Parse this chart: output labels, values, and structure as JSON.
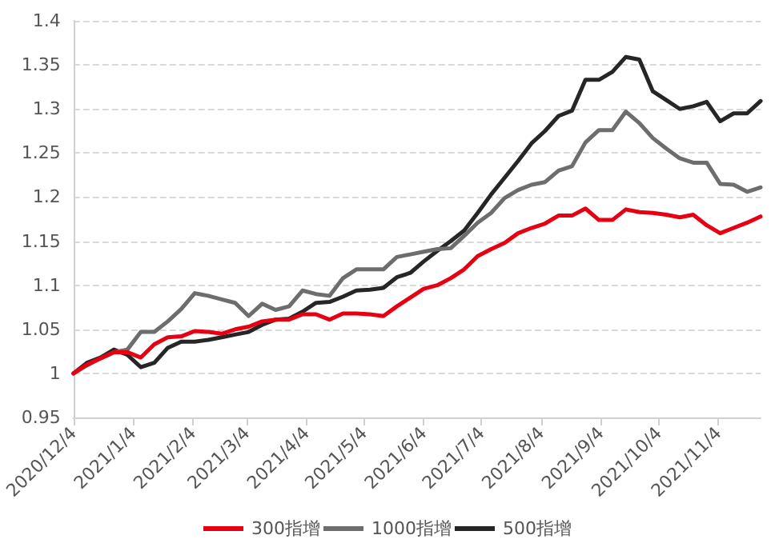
{
  "chart_data": {
    "type": "line",
    "x": [
      "2020-12-04",
      "2020-12-11",
      "2020-12-18",
      "2020-12-25",
      "2021-01-01",
      "2021-01-08",
      "2021-01-15",
      "2021-01-22",
      "2021-01-29",
      "2021-02-05",
      "2021-02-12",
      "2021-02-19",
      "2021-02-26",
      "2021-03-05",
      "2021-03-12",
      "2021-03-19",
      "2021-03-26",
      "2021-04-02",
      "2021-04-09",
      "2021-04-16",
      "2021-04-23",
      "2021-04-30",
      "2021-05-07",
      "2021-05-14",
      "2021-05-21",
      "2021-05-28",
      "2021-06-04",
      "2021-06-11",
      "2021-06-18",
      "2021-06-25",
      "2021-07-02",
      "2021-07-09",
      "2021-07-16",
      "2021-07-23",
      "2021-07-30",
      "2021-08-06",
      "2021-08-13",
      "2021-08-20",
      "2021-08-27",
      "2021-09-03",
      "2021-09-10",
      "2021-09-17",
      "2021-09-24",
      "2021-10-01",
      "2021-10-08",
      "2021-10-15",
      "2021-10-22",
      "2021-10-29",
      "2021-11-05",
      "2021-11-12",
      "2021-11-19",
      "2021-11-26"
    ],
    "series": [
      {
        "name": "300指增",
        "color": "#e60012",
        "values": [
          1.0,
          1.01,
          1.017,
          1.024,
          1.024,
          1.018,
          1.033,
          1.041,
          1.042,
          1.048,
          1.047,
          1.045,
          1.05,
          1.053,
          1.059,
          1.061,
          1.061,
          1.067,
          1.067,
          1.061,
          1.068,
          1.068,
          1.067,
          1.065,
          1.076,
          1.086,
          1.096,
          1.1,
          1.108,
          1.118,
          1.133,
          1.141,
          1.148,
          1.159,
          1.165,
          1.17,
          1.179,
          1.179,
          1.187,
          1.174,
          1.174,
          1.186,
          1.183,
          1.182,
          1.18,
          1.177,
          1.18,
          1.168,
          1.159,
          1.165,
          1.171,
          1.178
        ]
      },
      {
        "name": "1000指增",
        "color": "#6d6d6d",
        "values": [
          1.0,
          1.009,
          1.017,
          1.024,
          1.027,
          1.047,
          1.047,
          1.059,
          1.073,
          1.091,
          1.088,
          1.084,
          1.08,
          1.065,
          1.079,
          1.072,
          1.076,
          1.094,
          1.09,
          1.088,
          1.108,
          1.118,
          1.118,
          1.118,
          1.132,
          1.135,
          1.138,
          1.141,
          1.142,
          1.156,
          1.171,
          1.182,
          1.199,
          1.208,
          1.214,
          1.217,
          1.23,
          1.235,
          1.262,
          1.276,
          1.276,
          1.297,
          1.284,
          1.267,
          1.255,
          1.244,
          1.239,
          1.239,
          1.215,
          1.214,
          1.206,
          1.211
        ]
      },
      {
        "name": "500指增",
        "color": "#262626",
        "values": [
          1.0,
          1.012,
          1.018,
          1.027,
          1.021,
          1.007,
          1.012,
          1.029,
          1.036,
          1.036,
          1.038,
          1.041,
          1.044,
          1.047,
          1.055,
          1.061,
          1.062,
          1.07,
          1.08,
          1.081,
          1.087,
          1.094,
          1.095,
          1.097,
          1.109,
          1.114,
          1.127,
          1.139,
          1.15,
          1.162,
          1.182,
          1.203,
          1.222,
          1.241,
          1.261,
          1.275,
          1.292,
          1.298,
          1.333,
          1.333,
          1.342,
          1.359,
          1.356,
          1.32,
          1.31,
          1.3,
          1.303,
          1.308,
          1.286,
          1.295,
          1.295,
          1.309
        ]
      }
    ],
    "xlim": [
      "2020-12-04",
      "2021-11-26"
    ],
    "xticks": [
      {
        "value": "2020-12-04",
        "label": "2020/12/4"
      },
      {
        "value": "2021-01-04",
        "label": "2021/1/4"
      },
      {
        "value": "2021-02-04",
        "label": "2021/2/4"
      },
      {
        "value": "2021-03-04",
        "label": "2021/3/4"
      },
      {
        "value": "2021-04-04",
        "label": "2021/4/4"
      },
      {
        "value": "2021-05-04",
        "label": "2021/5/4"
      },
      {
        "value": "2021-06-04",
        "label": "2021/6/4"
      },
      {
        "value": "2021-07-04",
        "label": "2021/7/4"
      },
      {
        "value": "2021-08-04",
        "label": "2021/8/4"
      },
      {
        "value": "2021-09-04",
        "label": "2021/9/4"
      },
      {
        "value": "2021-10-04",
        "label": "2021/10/4"
      },
      {
        "value": "2021-11-04",
        "label": "2021/11/4"
      }
    ],
    "ylim": [
      0.95,
      1.4
    ],
    "yticks": [
      0.95,
      1,
      1.05,
      1.1,
      1.15,
      1.2,
      1.25,
      1.3,
      1.35,
      1.4
    ],
    "grid": "y",
    "legend": "bottom",
    "marker": "none",
    "line_style": "solid"
  }
}
